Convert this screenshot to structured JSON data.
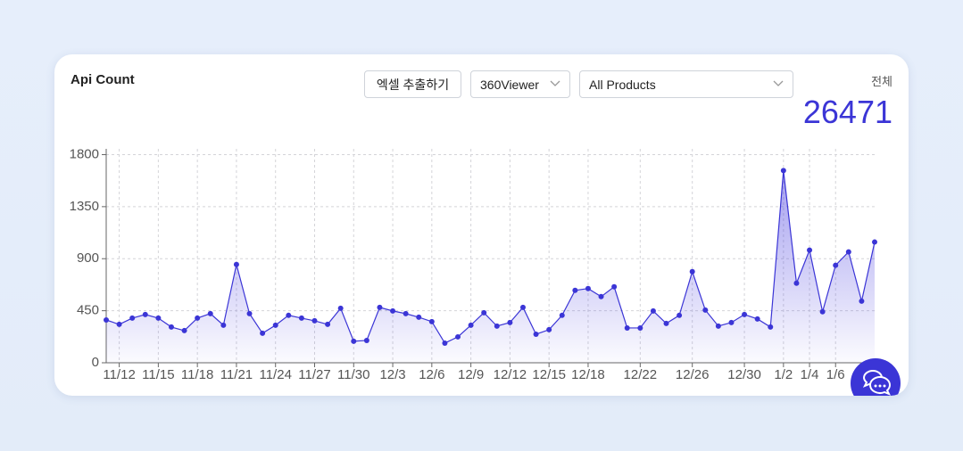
{
  "header": {
    "title": "Api Count",
    "export_button": "엑셀 추출하기",
    "viewer_select": "360Viewer",
    "product_select": "All Products",
    "total_label": "전체",
    "total_value": 26471
  },
  "chart_data": {
    "type": "line",
    "color": "#3b35d6",
    "area": true,
    "grid": true,
    "categories": [
      null,
      "11/12",
      null,
      null,
      "11/15",
      null,
      null,
      "11/18",
      null,
      null,
      "11/21",
      null,
      null,
      "11/24",
      null,
      null,
      "11/27",
      null,
      null,
      "11/30",
      null,
      null,
      "12/3",
      null,
      null,
      "12/6",
      null,
      null,
      "12/9",
      null,
      null,
      "12/12",
      null,
      null,
      "12/15",
      null,
      null,
      "12/18",
      null,
      null,
      null,
      "12/22",
      null,
      null,
      null,
      "12/26",
      null,
      null,
      null,
      "12/30",
      null,
      null,
      "1/2",
      null,
      "1/4",
      null,
      "1/6",
      null,
      null,
      null
    ],
    "values": [
      370,
      332,
      386,
      417,
      386,
      309,
      278,
      386,
      425,
      325,
      850,
      425,
      255,
      325,
      410,
      386,
      363,
      332,
      471,
      186,
      193,
      479,
      448,
      425,
      394,
      356,
      170,
      224,
      325,
      433,
      317,
      348,
      479,
      247,
      286,
      410,
      626,
      642,
      572,
      657,
      301,
      301,
      448,
      340,
      410,
      788,
      456,
      317,
      348,
      417,
      379,
      309,
      1662,
      688,
      974,
      441,
      843,
      959,
      533,
      1044
    ],
    "ylim": [
      0,
      1850
    ],
    "yticks": [
      0,
      450,
      900,
      1350,
      1800
    ]
  }
}
